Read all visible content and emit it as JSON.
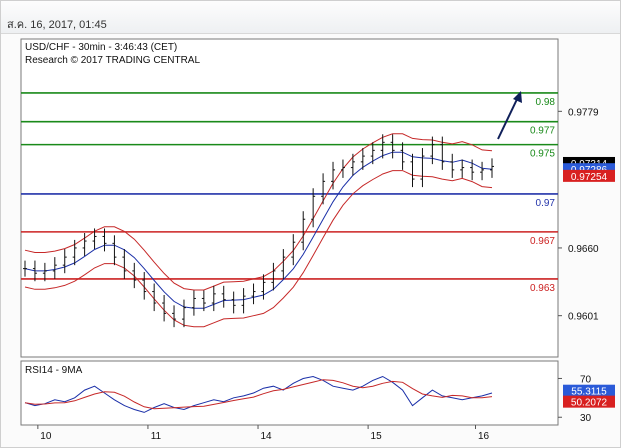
{
  "header": {
    "timestamp": "ส.ค. 16, 2017, 01:45"
  },
  "chart_data": [
    {
      "type": "candlestick",
      "title": "USD/CHF - 30min - 3:46:43 (CET)",
      "subtitle": "Research © 2017 TRADING CENTRAL",
      "x_tick_labels": [
        "10",
        "11",
        "14",
        "15",
        "16"
      ],
      "y_tick_labels": [
        "0.9779",
        "0.9660",
        "0.9601"
      ],
      "y_ticks": [
        0.9779,
        0.966,
        0.9601
      ],
      "ylim": [
        0.9565,
        0.9842
      ],
      "levels": [
        {
          "label": "0.98",
          "value": 0.9795,
          "color": "#1a8a1a"
        },
        {
          "label": "0.977",
          "value": 0.977,
          "color": "#1a8a1a"
        },
        {
          "label": "0.975",
          "value": 0.975,
          "color": "#1a8a1a"
        },
        {
          "label": "0.97",
          "value": 0.9707,
          "color": "#2233aa"
        },
        {
          "label": "0.967",
          "value": 0.9674,
          "color": "#cc2222"
        },
        {
          "label": "0.963",
          "value": 0.9633,
          "color": "#cc2222"
        }
      ],
      "price_labels": [
        {
          "label": "0.97314",
          "value": 0.97314,
          "bg": "#000000",
          "fg": "#ffffff"
        },
        {
          "label": "0.97286",
          "value": 0.97286,
          "bg": "#2a5ad8",
          "fg": "#ffffff"
        },
        {
          "label": "0.97254",
          "value": 0.97254,
          "bg": "#d82020",
          "fg": "#ffffff"
        }
      ],
      "price_path": [
        0.9642,
        0.9638,
        0.964,
        0.9645,
        0.9652,
        0.966,
        0.9666,
        0.967,
        0.9664,
        0.9652,
        0.964,
        0.9632,
        0.9622,
        0.9612,
        0.9603,
        0.9598,
        0.9608,
        0.9616,
        0.9612,
        0.962,
        0.9615,
        0.961,
        0.9618,
        0.9622,
        0.963,
        0.964,
        0.9652,
        0.9665,
        0.9685,
        0.9705,
        0.9718,
        0.9728,
        0.973,
        0.9735,
        0.974,
        0.9745,
        0.9752,
        0.9745,
        0.9735,
        0.972,
        0.974,
        0.975,
        0.9735,
        0.9728,
        0.973,
        0.9726,
        0.9728,
        0.9731
      ]
    },
    {
      "type": "line",
      "title": "RSI14 - 9MA",
      "y_tick_labels": [
        "70",
        "30"
      ],
      "y_ticks": [
        70,
        30
      ],
      "ylim": [
        22,
        88
      ],
      "price_labels": [
        {
          "label": "55.3115",
          "value": 55.3115,
          "bg": "#2a5ad8",
          "fg": "#ffffff"
        },
        {
          "label": "50.2072",
          "value": 50.2072,
          "bg": "#d82020",
          "fg": "#ffffff"
        }
      ],
      "rsi_path": [
        45,
        42,
        44,
        48,
        46,
        50,
        58,
        62,
        55,
        48,
        42,
        38,
        35,
        40,
        44,
        40,
        38,
        42,
        45,
        48,
        46,
        50,
        52,
        55,
        60,
        62,
        58,
        65,
        70,
        72,
        68,
        62,
        60,
        58,
        62,
        68,
        72,
        66,
        58,
        42,
        50,
        58,
        52,
        50,
        48,
        50,
        52,
        55
      ]
    }
  ]
}
